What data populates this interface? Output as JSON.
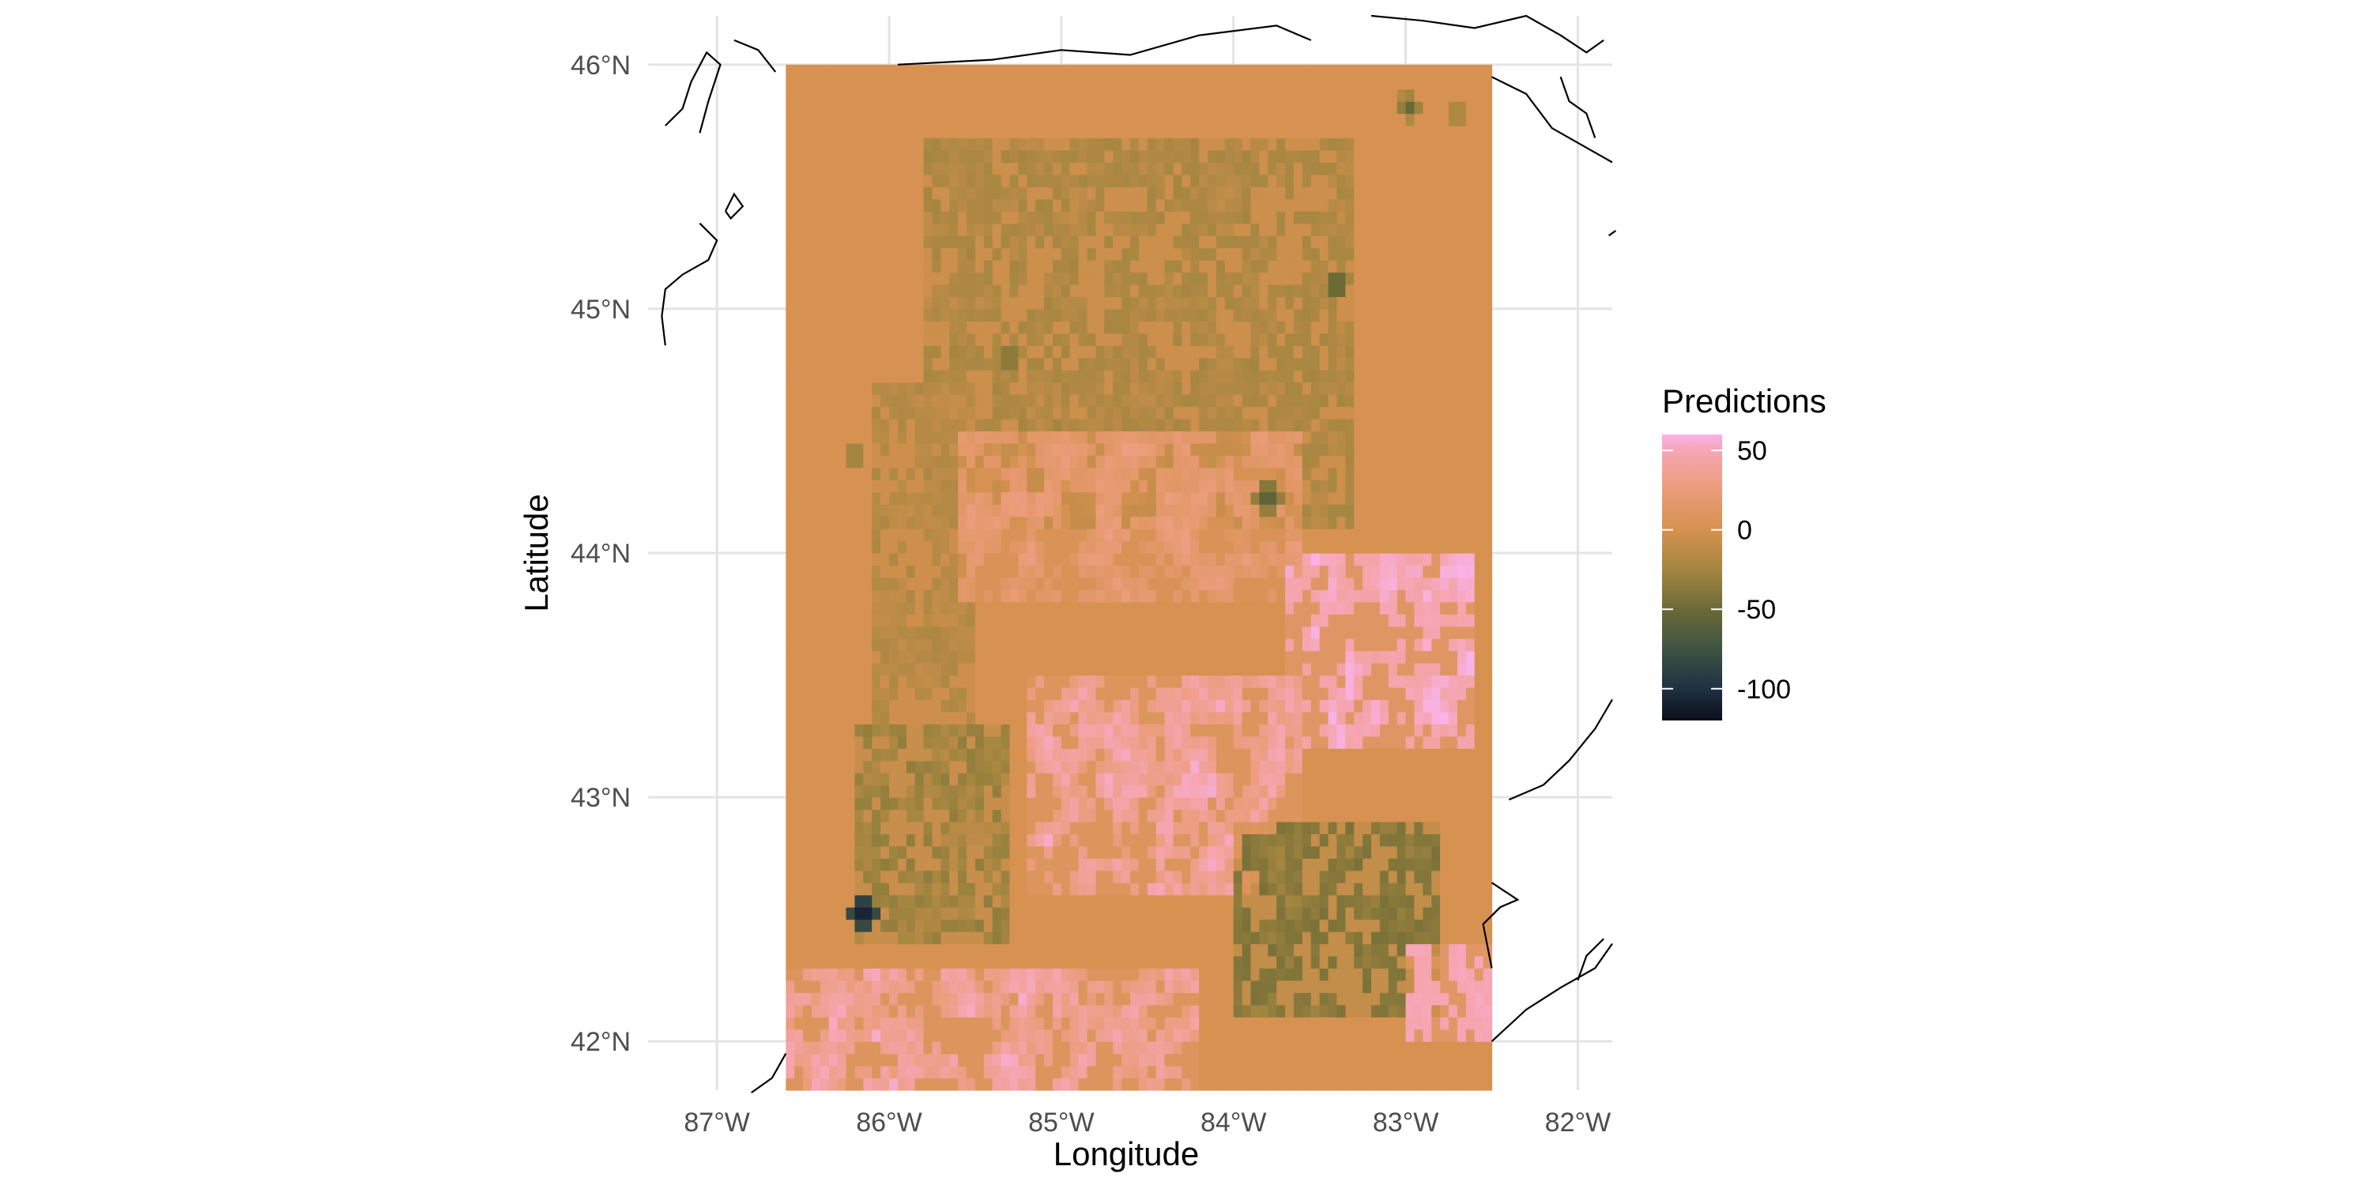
{
  "chart_data": {
    "type": "heatmap",
    "title": "",
    "xlabel": "Longitude",
    "ylabel": "Latitude",
    "xlim": [
      -87.4,
      -81.8
    ],
    "ylim": [
      41.8,
      46.2
    ],
    "grid": true,
    "x_ticks": [
      {
        "value": -87,
        "label": "87°W"
      },
      {
        "value": -86,
        "label": "86°W"
      },
      {
        "value": -85,
        "label": "85°W"
      },
      {
        "value": -84,
        "label": "84°W"
      },
      {
        "value": -83,
        "label": "83°W"
      },
      {
        "value": -82,
        "label": "82°W"
      }
    ],
    "y_ticks": [
      {
        "value": 42,
        "label": "42°N"
      },
      {
        "value": 43,
        "label": "43°N"
      },
      {
        "value": 44,
        "label": "44°N"
      },
      {
        "value": 45,
        "label": "45°N"
      },
      {
        "value": 46,
        "label": "46°N"
      }
    ],
    "raster_extent": {
      "lon": [
        -86.6,
        -82.5
      ],
      "lat": [
        41.8,
        46.0
      ]
    },
    "raster_resolution_deg": 0.05,
    "legend": {
      "title": "Predictions",
      "placement": "right",
      "range": [
        -120,
        60
      ],
      "breaks": [
        {
          "value": 50,
          "label": "50"
        },
        {
          "value": 0,
          "label": "0"
        },
        {
          "value": -50,
          "label": "-50"
        },
        {
          "value": -100,
          "label": "-100"
        }
      ]
    },
    "colormap": [
      {
        "value": -120,
        "color": "#0b0f1a"
      },
      {
        "value": -100,
        "color": "#1f3142"
      },
      {
        "value": -75,
        "color": "#3f5344"
      },
      {
        "value": -50,
        "color": "#6b6a36"
      },
      {
        "value": -25,
        "color": "#a48640"
      },
      {
        "value": 0,
        "color": "#d5914f"
      },
      {
        "value": 25,
        "color": "#eb9c79"
      },
      {
        "value": 50,
        "color": "#f6a6b4"
      },
      {
        "value": 60,
        "color": "#f9b3e9"
      }
    ],
    "background_value": 2,
    "regions": [
      {
        "name": "northern-interior",
        "lon": [
          -85.8,
          -83.3
        ],
        "lat": [
          44.1,
          45.7
        ],
        "value": -22,
        "texture": 16
      },
      {
        "name": "north-ring-west",
        "lon": [
          -86.1,
          -85.5
        ],
        "lat": [
          43.3,
          44.7
        ],
        "value": -18,
        "texture": 14
      },
      {
        "name": "central-band",
        "lon": [
          -85.6,
          -83.6
        ],
        "lat": [
          43.8,
          44.5
        ],
        "value": 15,
        "texture": 18
      },
      {
        "name": "thumb-pink",
        "lon": [
          -83.7,
          -82.6
        ],
        "lat": [
          43.2,
          44.0
        ],
        "value": 45,
        "texture": 20
      },
      {
        "name": "south-central-pink",
        "lon": [
          -85.2,
          -83.6
        ],
        "lat": [
          42.6,
          43.5
        ],
        "value": 30,
        "texture": 30
      },
      {
        "name": "southwest-olive",
        "lon": [
          -86.2,
          -85.3
        ],
        "lat": [
          42.4,
          43.3
        ],
        "value": -30,
        "texture": 24
      },
      {
        "name": "southeast-olive",
        "lon": [
          -84.0,
          -82.8
        ],
        "lat": [
          42.1,
          42.9
        ],
        "value": -40,
        "texture": 18
      },
      {
        "name": "southern-border-pink",
        "lon": [
          -86.6,
          -84.2
        ],
        "lat": [
          41.8,
          42.3
        ],
        "value": 30,
        "texture": 30
      },
      {
        "name": "detroit-pink",
        "lon": [
          -83.0,
          -82.5
        ],
        "lat": [
          42.0,
          42.4
        ],
        "value": 48,
        "texture": 8
      }
    ],
    "hotspots": [
      {
        "lon": -86.15,
        "lat": 42.53,
        "value": -120
      },
      {
        "lon": -83.4,
        "lat": 45.1,
        "value": -70
      },
      {
        "lon": -83.8,
        "lat": 44.23,
        "value": -70
      },
      {
        "lon": -82.98,
        "lat": 45.83,
        "value": -55
      },
      {
        "lon": -82.7,
        "lat": 45.8,
        "value": -40
      },
      {
        "lon": -85.3,
        "lat": 44.8,
        "value": -55
      },
      {
        "lon": -86.2,
        "lat": 44.4,
        "value": -45
      }
    ],
    "coastlines": [
      {
        "name": "north-shore-left",
        "points": [
          [
            -86.66,
            45.97
          ],
          [
            -86.76,
            46.06
          ],
          [
            -86.9,
            46.1
          ]
        ]
      },
      {
        "name": "north-shore-mid",
        "points": [
          [
            -85.95,
            46.0
          ],
          [
            -85.4,
            46.02
          ],
          [
            -85.0,
            46.06
          ],
          [
            -84.6,
            46.04
          ],
          [
            -84.2,
            46.12
          ],
          [
            -83.75,
            46.16
          ],
          [
            -83.55,
            46.1
          ]
        ]
      },
      {
        "name": "north-shore-right",
        "points": [
          [
            -83.2,
            46.2
          ],
          [
            -82.9,
            46.18
          ],
          [
            -82.6,
            46.15
          ],
          [
            -82.3,
            46.2
          ],
          [
            -82.1,
            46.12
          ],
          [
            -81.95,
            46.05
          ],
          [
            -81.85,
            46.1
          ]
        ]
      },
      {
        "name": "georgian-bay",
        "points": [
          [
            -82.5,
            45.95
          ],
          [
            -82.3,
            45.88
          ],
          [
            -82.15,
            45.74
          ],
          [
            -81.95,
            45.66
          ],
          [
            -81.8,
            45.6
          ]
        ]
      },
      {
        "name": "manitoulin-bay",
        "points": [
          [
            -82.1,
            45.95
          ],
          [
            -82.05,
            45.85
          ],
          [
            -81.95,
            45.8
          ],
          [
            -81.9,
            45.7
          ]
        ]
      },
      {
        "name": "west-coast-north",
        "points": [
          [
            -87.3,
            45.75
          ],
          [
            -87.2,
            45.82
          ],
          [
            -87.15,
            45.93
          ],
          [
            -87.06,
            46.05
          ],
          [
            -86.98,
            46.0
          ],
          [
            -87.05,
            45.85
          ],
          [
            -87.1,
            45.72
          ]
        ]
      },
      {
        "name": "green-bay-lower",
        "points": [
          [
            -87.1,
            45.35
          ],
          [
            -87.0,
            45.28
          ],
          [
            -87.05,
            45.2
          ],
          [
            -87.2,
            45.14
          ],
          [
            -87.3,
            45.08
          ],
          [
            -87.32,
            44.97
          ],
          [
            -87.3,
            44.85
          ]
        ]
      },
      {
        "name": "green-bay-point",
        "points": [
          [
            -86.95,
            45.4
          ],
          [
            -86.9,
            45.47
          ],
          [
            -86.85,
            45.42
          ],
          [
            -86.92,
            45.37
          ],
          [
            -86.95,
            45.4
          ]
        ]
      },
      {
        "name": "huron-east-shore",
        "points": [
          [
            -81.8,
            43.4
          ],
          [
            -81.9,
            43.28
          ],
          [
            -82.05,
            43.15
          ],
          [
            -82.2,
            43.05
          ],
          [
            -82.4,
            42.99
          ]
        ]
      },
      {
        "name": "detroit-river",
        "points": [
          [
            -82.5,
            42.3
          ],
          [
            -82.55,
            42.48
          ],
          [
            -82.45,
            42.55
          ],
          [
            -82.35,
            42.58
          ],
          [
            -82.5,
            42.65
          ]
        ]
      },
      {
        "name": "lake-erie-north",
        "points": [
          [
            -82.5,
            42.0
          ],
          [
            -82.3,
            42.13
          ],
          [
            -82.1,
            42.22
          ],
          [
            -81.9,
            42.3
          ],
          [
            -81.8,
            42.4
          ]
        ]
      },
      {
        "name": "lake-erie-inlet",
        "points": [
          [
            -82.0,
            42.25
          ],
          [
            -81.95,
            42.35
          ],
          [
            -81.85,
            42.42
          ]
        ]
      },
      {
        "name": "south-west-corner",
        "points": [
          [
            -86.6,
            41.95
          ],
          [
            -86.68,
            41.85
          ],
          [
            -86.8,
            41.79
          ]
        ]
      },
      {
        "name": "east-edge-stub",
        "points": [
          [
            -81.82,
            45.3
          ],
          [
            -81.78,
            45.32
          ]
        ]
      }
    ]
  }
}
